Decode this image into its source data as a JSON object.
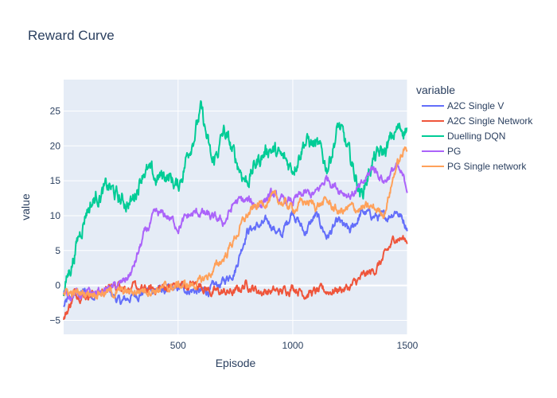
{
  "chart_data": {
    "type": "line",
    "title": "Reward Curve",
    "xlabel": "Episode",
    "ylabel": "value",
    "xlim": [
      1,
      1500
    ],
    "ylim": [
      -7,
      29.5
    ],
    "xticks": [
      500,
      1000,
      1500
    ],
    "yticks": [
      -5,
      0,
      5,
      10,
      15,
      20,
      25
    ],
    "grid": true,
    "legend": {
      "title": "variable",
      "placement": "right"
    },
    "series": [
      {
        "name": "A2C Single V",
        "color": "#636efa",
        "x": [
          1,
          50,
          100,
          150,
          200,
          250,
          300,
          350,
          400,
          450,
          500,
          550,
          600,
          650,
          700,
          750,
          800,
          850,
          900,
          950,
          1000,
          1050,
          1100,
          1150,
          1200,
          1250,
          1300,
          1350,
          1400,
          1450,
          1500
        ],
        "values": [
          -3,
          -1.2,
          -1.0,
          -1.2,
          -1.0,
          -2.5,
          -1.5,
          -0.8,
          -0.5,
          -0.8,
          -0.5,
          -0.5,
          -1.0,
          -0.5,
          0.5,
          2.5,
          8.0,
          8.5,
          9.0,
          7.0,
          11.0,
          7.5,
          10.0,
          7.0,
          9.0,
          7.5,
          10.5,
          10.0,
          9.5,
          11.0,
          8.5
        ]
      },
      {
        "name": "A2C Single Network",
        "color": "#ef553b",
        "x": [
          1,
          50,
          100,
          150,
          200,
          250,
          300,
          350,
          400,
          450,
          500,
          550,
          600,
          650,
          700,
          750,
          800,
          850,
          900,
          950,
          1000,
          1050,
          1100,
          1150,
          1200,
          1250,
          1300,
          1350,
          1400,
          1450,
          1500
        ],
        "values": [
          -5,
          -1.0,
          -1.2,
          -1.0,
          -0.5,
          0.3,
          -0.5,
          -0.8,
          -0.5,
          -0.2,
          0.0,
          0.0,
          0.2,
          -1.0,
          -1.0,
          -1.0,
          0.3,
          -0.8,
          -0.8,
          -1.0,
          0.0,
          -1.0,
          -1.0,
          -0.8,
          -0.5,
          -0.3,
          1.0,
          2.0,
          4.0,
          7.0,
          6.5
        ]
      },
      {
        "name": "Duelling DQN",
        "color": "#00cc96",
        "x": [
          1,
          50,
          100,
          150,
          200,
          250,
          300,
          350,
          400,
          450,
          500,
          550,
          600,
          650,
          700,
          750,
          800,
          850,
          900,
          950,
          1000,
          1050,
          1100,
          1150,
          1200,
          1250,
          1300,
          1350,
          1400,
          1450,
          1500
        ],
        "values": [
          -1,
          5,
          11,
          13,
          14,
          12,
          12,
          17,
          15,
          16,
          14,
          20,
          25,
          17,
          22,
          18,
          15,
          18,
          20,
          18,
          17,
          21,
          20,
          17,
          23,
          18,
          13,
          18,
          19,
          22,
          23
        ]
      },
      {
        "name": "PG",
        "color": "#ab63fa",
        "x": [
          1,
          50,
          100,
          150,
          200,
          250,
          300,
          350,
          400,
          450,
          500,
          550,
          600,
          650,
          700,
          750,
          800,
          850,
          900,
          950,
          1000,
          1050,
          1100,
          1150,
          1200,
          1250,
          1300,
          1350,
          1400,
          1450,
          1500
        ],
        "values": [
          -1.5,
          -1.0,
          -1.5,
          -1.0,
          -0.5,
          0.0,
          2.0,
          7.0,
          10.0,
          10.0,
          8.5,
          10.0,
          10.5,
          9.5,
          9.0,
          12.0,
          12.0,
          11.5,
          13.0,
          12.0,
          12.0,
          13.0,
          13.0,
          15.5,
          14.0,
          13.0,
          14.0,
          17.0,
          15.0,
          17.0,
          14.0
        ]
      },
      {
        "name": "PG Single network",
        "color": "#ffa15a",
        "x": [
          1,
          50,
          100,
          150,
          200,
          250,
          300,
          350,
          400,
          450,
          500,
          550,
          600,
          650,
          700,
          750,
          800,
          850,
          900,
          950,
          1000,
          1050,
          1100,
          1150,
          1200,
          1250,
          1300,
          1350,
          1400,
          1450,
          1500
        ],
        "values": [
          -1.0,
          -1.2,
          -1.0,
          -0.8,
          -1.0,
          -1.0,
          -1.0,
          -0.5,
          -0.5,
          -0.5,
          0.0,
          0.0,
          0.5,
          2.0,
          4.0,
          7.0,
          10.0,
          11.5,
          12.5,
          12.0,
          11.0,
          12.0,
          11.5,
          12.0,
          10.5,
          11.0,
          11.0,
          11.0,
          10.5,
          17.0,
          20.0
        ]
      }
    ]
  }
}
